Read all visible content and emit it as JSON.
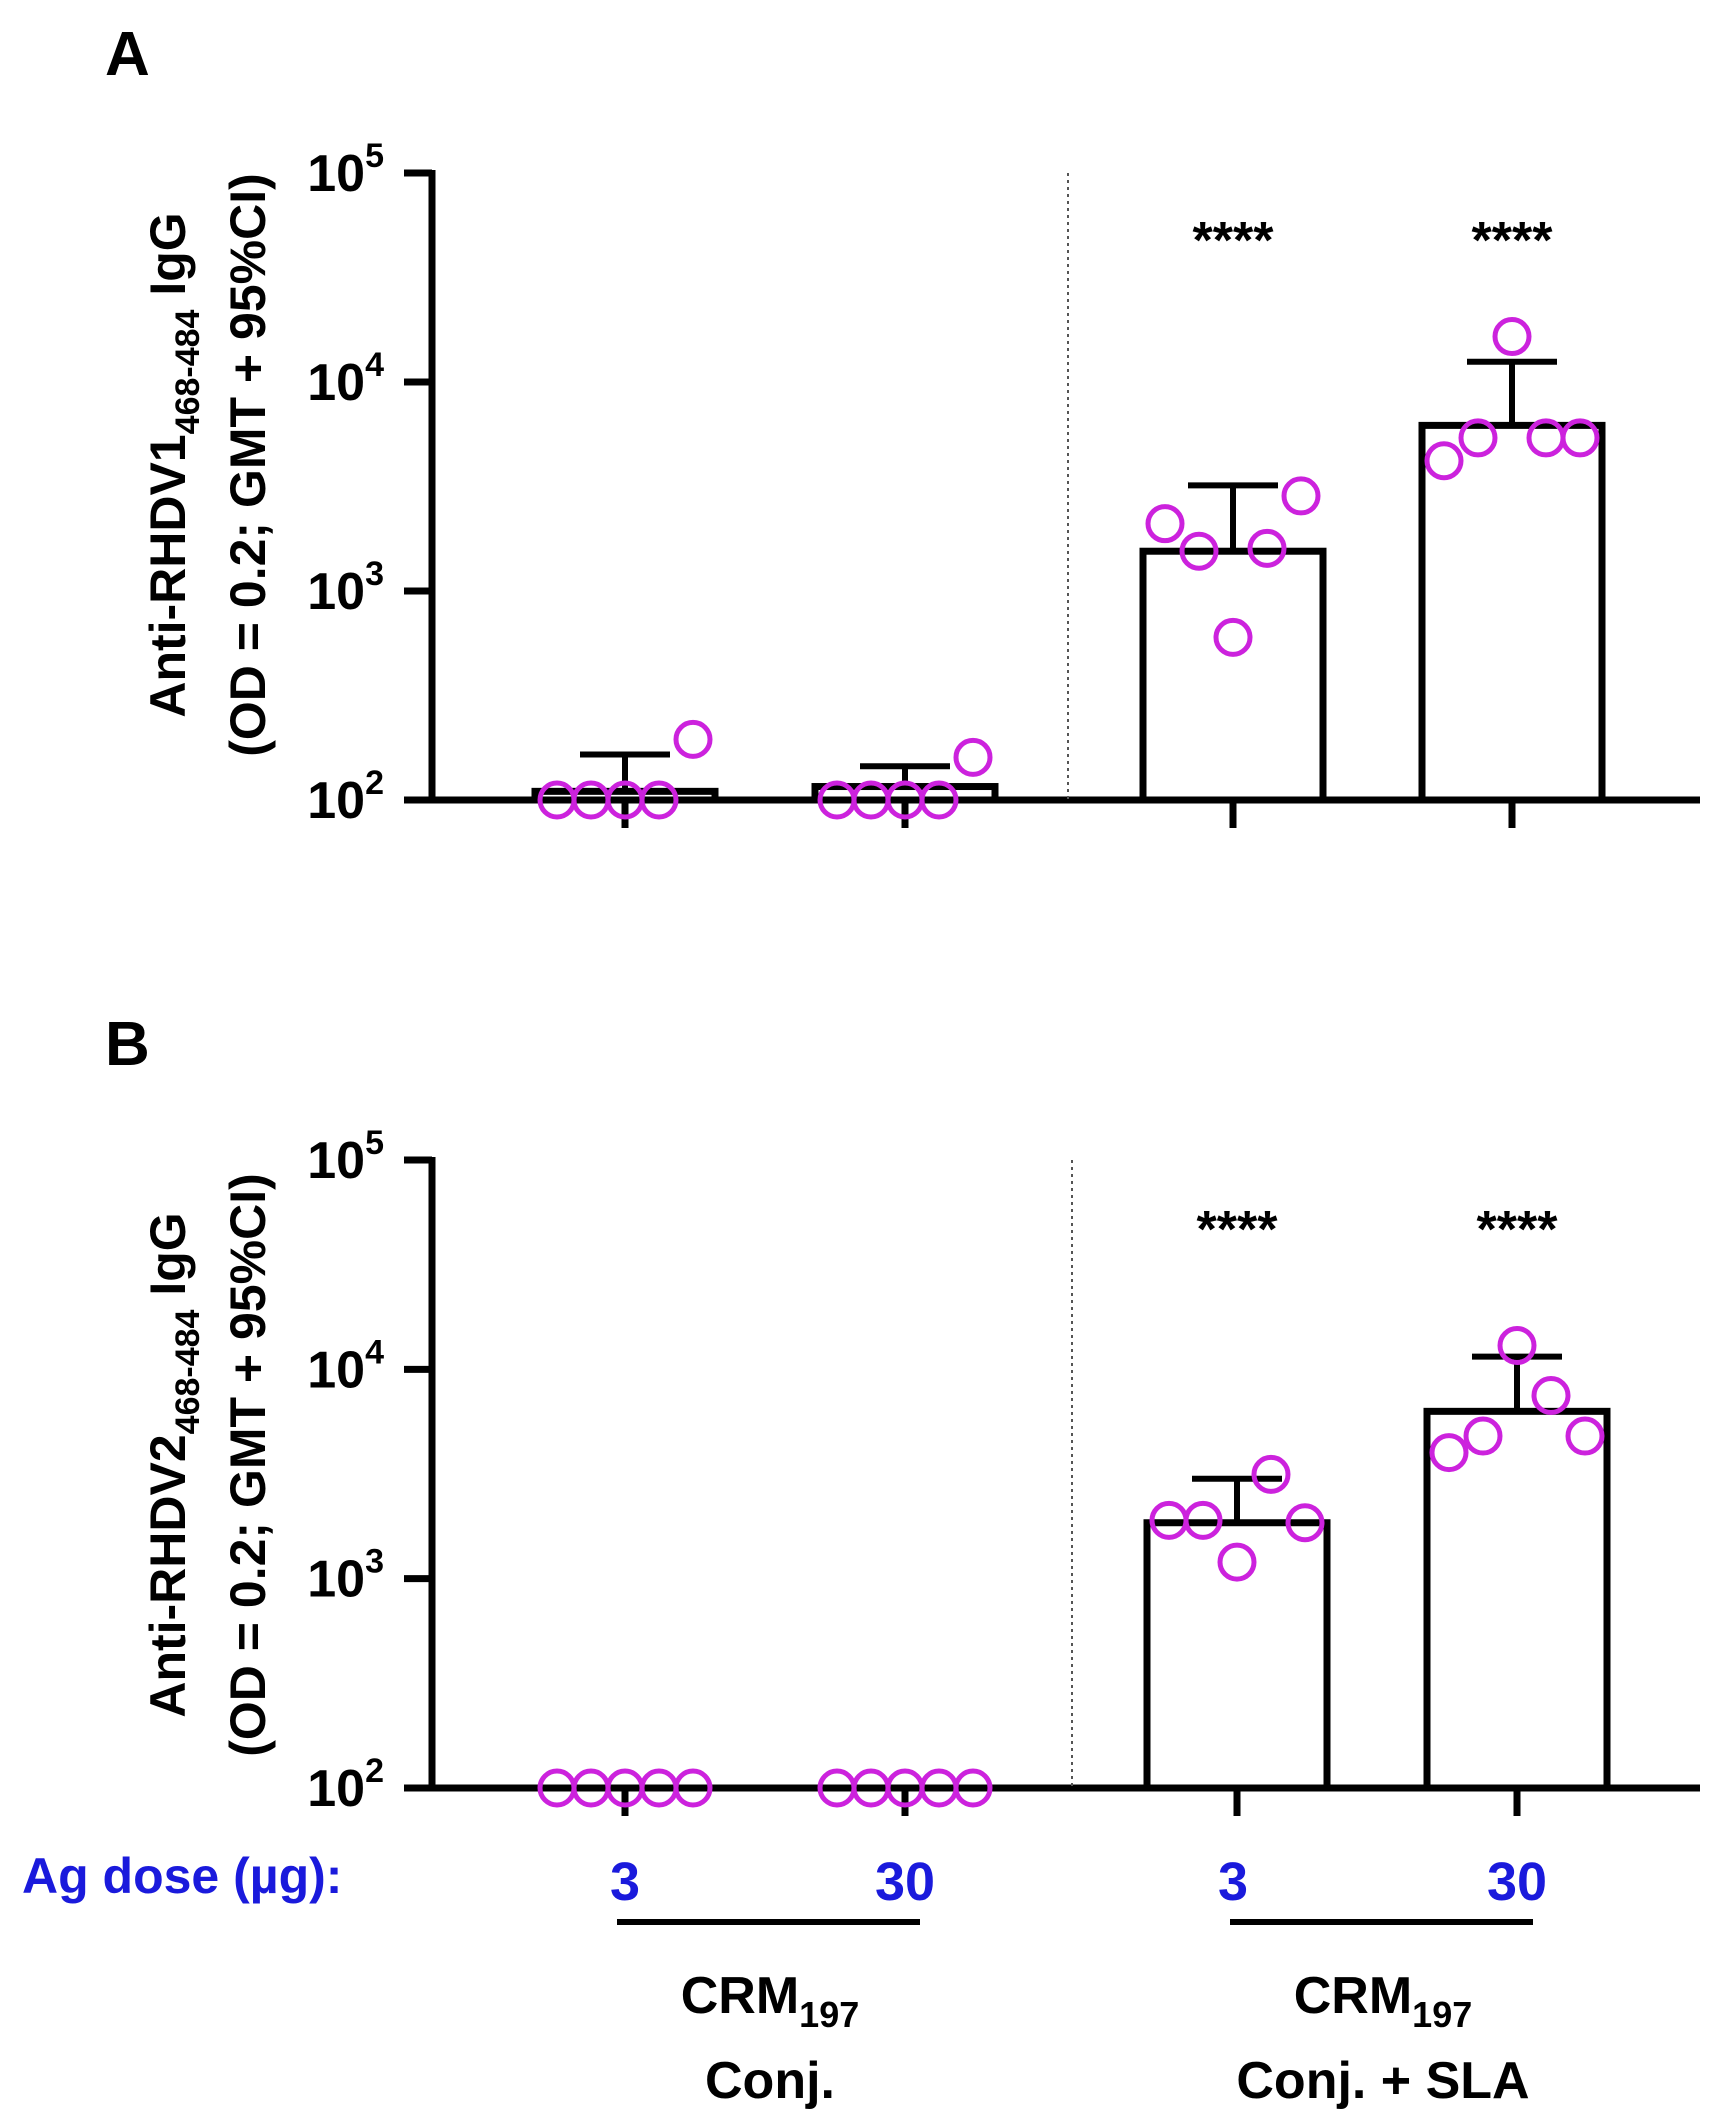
{
  "colors": {
    "axis": "#000000",
    "points": "#cc22dd",
    "dose_text": "#1a1adc",
    "divider": "#555555"
  },
  "chart_data": [
    {
      "type": "bar",
      "scale": "log10",
      "panel_label": "A",
      "ylabel_main": "Anti-RHDV1",
      "ylabel_sub": "468-484",
      "ylabel_suffix": " IgG",
      "ylabel_line2": "(OD = 0.2; GMT + 95%CI)",
      "ylim": [
        100,
        100000
      ],
      "yticks": [
        {
          "base": "10",
          "exp": "2",
          "value": 100
        },
        {
          "base": "10",
          "exp": "3",
          "value": 1000
        },
        {
          "base": "10",
          "exp": "4",
          "value": 10000
        },
        {
          "base": "10",
          "exp": "5",
          "value": 100000
        }
      ],
      "groups": [
        {
          "name": "CRM197 Conj. 3 µg",
          "gmt": 110,
          "ci_upper": 165,
          "points": [
            100,
            100,
            100,
            100,
            195
          ],
          "significance": ""
        },
        {
          "name": "CRM197 Conj. 30 µg",
          "gmt": 116,
          "ci_upper": 145,
          "points": [
            100,
            100,
            100,
            100,
            160
          ],
          "significance": ""
        },
        {
          "name": "CRM197 Conj. + SLA 3 µg",
          "gmt": 1550,
          "ci_upper": 3200,
          "points": [
            2100,
            1550,
            600,
            1600,
            2850
          ],
          "significance": "****"
        },
        {
          "name": "CRM197 Conj. + SLA 30 µg",
          "gmt": 6200,
          "ci_upper": 12500,
          "points": [
            4200,
            5400,
            16500,
            5400,
            5400
          ],
          "significance": "****"
        }
      ]
    },
    {
      "type": "bar",
      "scale": "log10",
      "panel_label": "B",
      "ylabel_main": "Anti-RHDV2",
      "ylabel_sub": "468-484",
      "ylabel_suffix": " IgG",
      "ylabel_line2": "(OD = 0.2; GMT + 95%CI)",
      "ylim": [
        100,
        100000
      ],
      "yticks": [
        {
          "base": "10",
          "exp": "2",
          "value": 100
        },
        {
          "base": "10",
          "exp": "3",
          "value": 1000
        },
        {
          "base": "10",
          "exp": "4",
          "value": 10000
        },
        {
          "base": "10",
          "exp": "5",
          "value": 100000
        }
      ],
      "groups": [
        {
          "name": "CRM197 Conj. 3 µg",
          "gmt": 100,
          "ci_upper": 100,
          "points": [
            100,
            100,
            100,
            100,
            100
          ],
          "significance": ""
        },
        {
          "name": "CRM197 Conj. 30 µg",
          "gmt": 100,
          "ci_upper": 100,
          "points": [
            100,
            100,
            100,
            100,
            100
          ],
          "significance": ""
        },
        {
          "name": "CRM197 Conj. + SLA 3 µg",
          "gmt": 1850,
          "ci_upper": 3000,
          "points": [
            1900,
            1900,
            1200,
            3150,
            1850
          ],
          "significance": "****"
        },
        {
          "name": "CRM197 Conj. + SLA 30 µg",
          "gmt": 6300,
          "ci_upper": 11500,
          "points": [
            4000,
            4800,
            13000,
            7500,
            4800
          ],
          "significance": "****"
        }
      ]
    }
  ],
  "x_axis": {
    "dose_label": "Ag dose (µg):",
    "doses": [
      "3",
      "30",
      "3",
      "30"
    ],
    "group_labels": [
      {
        "line1": "CRM",
        "sub": "197",
        "line2": "Conj."
      },
      {
        "line1": "CRM",
        "sub": "197",
        "line2": "Conj. + SLA"
      }
    ]
  }
}
